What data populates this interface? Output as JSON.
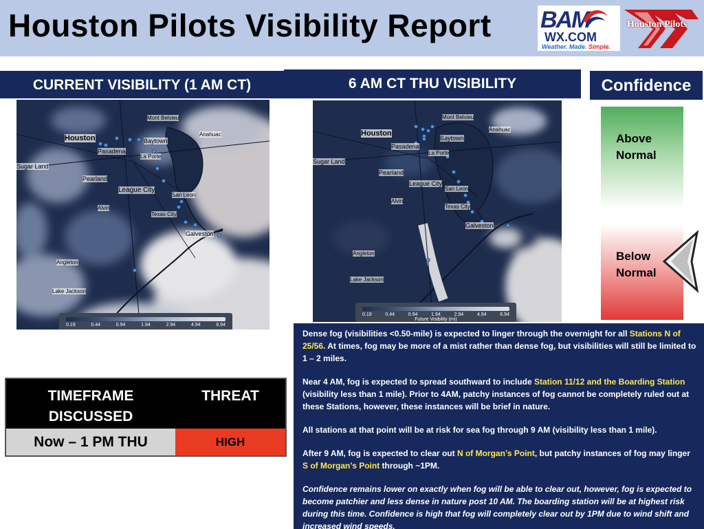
{
  "header": {
    "title": "Houston Pilots Visibility Report",
    "bam_logo": {
      "letters": "BAM",
      "site": "WX.COM",
      "tagline_a": "Weather. Made. ",
      "tagline_b": "Simple."
    },
    "pilots_logo": {
      "name": "Houston Pilots"
    }
  },
  "panels": {
    "current_title": "CURRENT VISIBILITY (1 AM CT)",
    "future_title": "6 AM CT THU VISIBILITY",
    "confidence_title": "Confidence"
  },
  "map_current": {
    "places": [
      "Mont Belvieu",
      "Houston",
      "Pasadena",
      "Baytown",
      "La Porte",
      "Sugar Land",
      "Pearland",
      "League City",
      "Alvin",
      "San Leon",
      "Texas City",
      "Galveston",
      "Angleton",
      "Lake Jackson",
      "Anahuac"
    ],
    "legend_ticks": [
      "0.19",
      "0.44",
      "0.94",
      "1.94",
      "2.94",
      "4.94",
      "6.94"
    ],
    "legend_title": ""
  },
  "map_future": {
    "places": [
      "Mont Belvieu",
      "Houston",
      "Pasadena",
      "Baytown",
      "La Porte",
      "Sugar Land",
      "Pearland",
      "League City",
      "Alvin",
      "San Leon",
      "Texas City",
      "Galveston",
      "Angleton",
      "Lake Jackson",
      "Anahuac"
    ],
    "legend_ticks": [
      "0.19",
      "0.44",
      "0.94",
      "1.94",
      "2.94",
      "4.94",
      "6.94"
    ],
    "legend_title": "Future Visibility (mi)"
  },
  "confidence": {
    "above_1": "Above",
    "above_2": "Normal",
    "below_1": "Below",
    "below_2": "Normal",
    "level": "Below Normal"
  },
  "threat_table": {
    "header_timeframe_1": "TIMEFRAME",
    "header_timeframe_2": "DISCUSSED",
    "header_threat": "THREAT",
    "timeframe": "Now – 1 PM THU",
    "threat": "HIGH"
  },
  "discussion": {
    "p1_a": "Dense fog (visibilities <0.50-mile) is expected to linger through the overnight for all ",
    "p1_hl": "Stations N of 25/56",
    "p1_b": ". At times, fog may be more of a mist rather than dense fog, but visibilities will still be limited to 1 – 2 miles.",
    "p2_a": "Near 4 AM, fog is expected to spread southward to include ",
    "p2_hl": "Station 11/12 and the Boarding Station",
    "p2_b": " (visibility less than 1 mile). Prior to 4AM, patchy instances of fog cannot be completely ruled out at these Stations, however, these instances will be brief in nature.",
    "p3": "All stations at that point will be at risk for sea fog through 9 AM (visibility less than 1 mile).",
    "p4_a": "After 9 AM, fog is expected to clear out ",
    "p4_hl1": "N of Morgan’s Point",
    "p4_b": ", but patchy instances of fog may linger ",
    "p4_hl2": "S of Morgan’s Point",
    "p4_c": " through ~1PM.",
    "p5": "Confidence remains lower on exactly when fog will be able to clear out, however, fog is expected to become patchier and less dense in nature post 10 AM. The boarding station will be at highest risk during this time. Confidence is high that fog will completely clear out by 1PM due to wind shift and increased wind speeds."
  },
  "colors": {
    "navy": "#16285c",
    "header_bg": "#b9c9e6",
    "highlight": "#ffe94f",
    "threat_high": "#e93b22"
  }
}
